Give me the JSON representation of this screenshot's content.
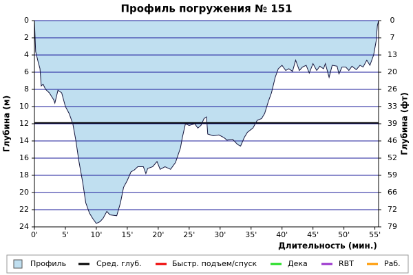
{
  "chart_data": {
    "type": "area",
    "title": "Профиль погружения № 151",
    "xlabel": "Длительность (мин.)",
    "ylabel": "Глубина (м)",
    "y2label": "Глубина (фт)",
    "invert_y": true,
    "grid": true,
    "grid_color": "#1a1a9a",
    "x": [
      0,
      0.2,
      0.6,
      0.9,
      1.1,
      1.4,
      1.8,
      2.4,
      3.1,
      3.3,
      3.8,
      4.4,
      5.0,
      5.6,
      6.2,
      6.7,
      7.2,
      7.8,
      8.3,
      8.9,
      9.4,
      10.0,
      10.6,
      11.1,
      11.7,
      12.2,
      13.3,
      13.9,
      14.4,
      15.0,
      15.6,
      16.1,
      16.7,
      17.6,
      18.0,
      18.3,
      19.1,
      19.8,
      20.3,
      21.1,
      22.0,
      22.8,
      23.6,
      23.9,
      24.4,
      25.0,
      25.9,
      26.4,
      26.9,
      27.4,
      27.8,
      28.0,
      28.9,
      29.8,
      30.6,
      31.1,
      32.0,
      32.8,
      33.3,
      33.9,
      34.4,
      35.3,
      36.0,
      36.7,
      37.2,
      37.8,
      38.3,
      38.9,
      39.4,
      40.0,
      40.6,
      41.1,
      41.7,
      42.2,
      42.8,
      43.3,
      43.9,
      44.4,
      45.0,
      45.6,
      46.1,
      46.7,
      47.0,
      47.6,
      48.1,
      48.9,
      49.2,
      49.7,
      50.3,
      50.8,
      51.3,
      52.0,
      52.6,
      53.1,
      53.7,
      54.2,
      54.8,
      55.2,
      55.4,
      55.6
    ],
    "series": [
      {
        "name": "Профиль",
        "color": "#c0dff0",
        "line_color": "#14143c",
        "values": [
          0,
          3.6,
          4.8,
          5.6,
          7.6,
          7.4,
          8.0,
          8.4,
          9.2,
          9.6,
          8.1,
          8.4,
          10.0,
          10.8,
          12.0,
          14.0,
          16.4,
          18.8,
          21.2,
          22.4,
          23.0,
          23.6,
          23.4,
          23.0,
          22.2,
          22.6,
          22.7,
          21.2,
          19.4,
          18.6,
          17.6,
          17.4,
          17.0,
          17.0,
          17.8,
          17.2,
          17.0,
          16.4,
          17.3,
          17.0,
          17.3,
          16.5,
          14.8,
          13.6,
          12.0,
          12.2,
          12.0,
          12.5,
          12.2,
          11.4,
          11.2,
          13.2,
          13.4,
          13.3,
          13.6,
          13.9,
          13.8,
          14.4,
          14.6,
          13.6,
          13.0,
          12.5,
          11.6,
          11.4,
          10.8,
          9.4,
          8.4,
          6.6,
          5.6,
          5.2,
          5.8,
          5.6,
          5.9,
          4.6,
          5.8,
          5.4,
          5.2,
          6.1,
          5.0,
          5.8,
          5.3,
          5.6,
          5.0,
          6.6,
          5.2,
          5.3,
          6.2,
          5.4,
          5.4,
          5.8,
          5.3,
          5.7,
          5.2,
          5.4,
          4.6,
          5.2,
          4.0,
          2.4,
          0.6,
          0
        ]
      }
    ],
    "avg_depth": 11.9,
    "avg_color": "#000000",
    "legend_items": [
      {
        "name": "Сред. глуб.",
        "color": "#000000"
      },
      {
        "name": "Быстр. подъем/спуск",
        "color": "#ee0000"
      },
      {
        "name": "Дека",
        "color": "#22dd22"
      },
      {
        "name": "RBT",
        "color": "#9933cc"
      },
      {
        "name": "Раб.",
        "color": "#ff9900"
      }
    ],
    "xlim": [
      0,
      55.6
    ],
    "xticks": [
      {
        "value": 0,
        "label": "0'"
      },
      {
        "value": 5,
        "label": "5'"
      },
      {
        "value": 10,
        "label": "10'"
      },
      {
        "value": 15,
        "label": "15'"
      },
      {
        "value": 20,
        "label": "20'"
      },
      {
        "value": 25,
        "label": "25'"
      },
      {
        "value": 30,
        "label": "30'"
      },
      {
        "value": 35,
        "label": "35'"
      },
      {
        "value": 40,
        "label": "40'"
      },
      {
        "value": 45,
        "label": "45'"
      },
      {
        "value": 50,
        "label": "50'"
      },
      {
        "value": 55,
        "label": "55'"
      }
    ],
    "ylim": [
      0,
      24
    ],
    "yticks": [
      0,
      2,
      4,
      6,
      8,
      10,
      12,
      14,
      16,
      18,
      20,
      22,
      24
    ],
    "y2lim": [
      0,
      78.74
    ],
    "y2ticks": [
      0,
      {
        "value": 6.56,
        "label": "7"
      },
      {
        "value": 13.12,
        "label": "13"
      },
      {
        "value": 19.69,
        "label": "20"
      },
      {
        "value": 26.25,
        "label": "26"
      },
      {
        "value": 32.81,
        "label": "33"
      },
      {
        "value": 39.37,
        "label": "39"
      },
      {
        "value": 45.93,
        "label": "46"
      },
      {
        "value": 52.49,
        "label": "52"
      },
      {
        "value": 59.06,
        "label": "59"
      },
      {
        "value": 65.62,
        "label": "66"
      },
      {
        "value": 72.18,
        "label": "72"
      },
      {
        "value": 78.74,
        "label": "79"
      }
    ]
  }
}
